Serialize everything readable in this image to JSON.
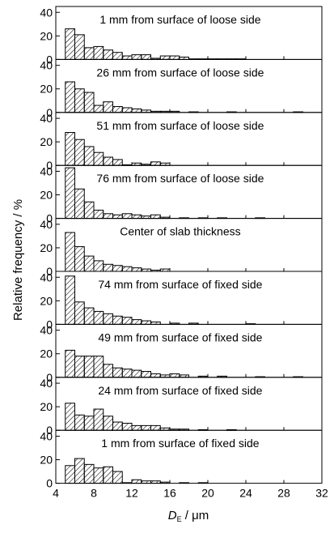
{
  "chart_data": {
    "type": "bar",
    "bin_width": 1,
    "xlim": [
      4,
      32
    ],
    "ylim": [
      0,
      45
    ],
    "x_ticks": [
      4,
      8,
      12,
      16,
      20,
      24,
      28,
      32
    ],
    "y_ticks": [
      0,
      20,
      40
    ],
    "xlabel_main": "D",
    "xlabel_sub": "E",
    "xlabel_unit": " / μm",
    "ylabel": "Relative frequency / %",
    "panels": [
      {
        "title": "1 mm from surface of loose side",
        "bins": [
          5.5,
          6.5,
          7.5,
          8.5,
          9.5,
          10.5,
          11.5,
          12.5,
          13.5,
          14.5,
          15.5,
          16.5,
          17.5,
          18.5,
          19.5,
          20.5,
          21.5,
          22.5,
          23.5
        ],
        "values": [
          26,
          21,
          10,
          11,
          8,
          6,
          3,
          4,
          4,
          1,
          3,
          3,
          2,
          0.5,
          0.5,
          0.5,
          0.5,
          0.5,
          0.5
        ]
      },
      {
        "title": "26 mm from surface of loose side",
        "bins": [
          5.5,
          6.5,
          7.5,
          8.5,
          9.5,
          10.5,
          11.5,
          12.5,
          13.5,
          14.5,
          15.5,
          16.5,
          18.5,
          22.5,
          29.5
        ],
        "values": [
          26,
          20,
          17,
          6,
          9,
          5,
          4,
          3,
          2,
          1,
          1,
          1,
          0.5,
          0.5,
          0.5
        ]
      },
      {
        "title": "51 mm from surface of loose side",
        "bins": [
          5.5,
          6.5,
          7.5,
          8.5,
          9.5,
          10.5,
          11.5,
          12.5,
          13.5,
          14.5,
          15.5
        ],
        "values": [
          28,
          22,
          16,
          11,
          7,
          5,
          0.5,
          2,
          1,
          3,
          2
        ]
      },
      {
        "title": "76 mm from surface of loose side",
        "bins": [
          5.5,
          6.5,
          7.5,
          8.5,
          9.5,
          10.5,
          11.5,
          12.5,
          13.5,
          14.5,
          15.5,
          17.5,
          19.5,
          21.5,
          25.5
        ],
        "values": [
          43,
          25,
          14,
          7,
          4,
          3,
          4,
          3,
          2,
          3,
          1,
          0.5,
          0.5,
          0.5,
          0.5
        ]
      },
      {
        "title": "Center of slab thickness",
        "bins": [
          5.5,
          6.5,
          7.5,
          8.5,
          9.5,
          10.5,
          11.5,
          12.5,
          13.5,
          14.5,
          15.5
        ],
        "values": [
          33,
          21,
          13,
          9,
          6,
          5,
          4,
          3,
          2,
          1,
          2
        ]
      },
      {
        "title": "74 mm from surface of fixed side",
        "bins": [
          5.5,
          6.5,
          7.5,
          8.5,
          9.5,
          10.5,
          11.5,
          12.5,
          13.5,
          14.5,
          16.5,
          18.5,
          24.5
        ],
        "values": [
          41,
          19,
          14,
          11,
          9,
          7,
          6,
          4,
          3,
          2,
          1,
          1,
          0.5
        ]
      },
      {
        "title": "49 mm from surface of fixed side",
        "bins": [
          5.5,
          6.5,
          7.5,
          8.5,
          9.5,
          10.5,
          11.5,
          12.5,
          13.5,
          14.5,
          15.5,
          16.5,
          17.5,
          19.5,
          21.5,
          25.5,
          29.5
        ],
        "values": [
          23,
          18,
          18,
          18,
          11,
          8,
          7,
          6,
          5,
          3,
          2,
          3,
          2,
          1,
          1,
          0.5,
          0.5
        ]
      },
      {
        "title": "24 mm from surface of fixed side",
        "bins": [
          5.5,
          6.5,
          7.5,
          8.5,
          9.5,
          10.5,
          11.5,
          12.5,
          13.5,
          14.5,
          15.5,
          16.5,
          17.5,
          19.5,
          22.5
        ],
        "values": [
          23,
          13,
          12,
          18,
          12,
          7,
          6,
          4,
          4,
          4,
          2,
          1,
          1,
          0.5,
          0.5
        ]
      },
      {
        "title": "1 mm from surface of fixed side",
        "bins": [
          5.5,
          6.5,
          7.5,
          8.5,
          9.5,
          10.5,
          11.5,
          12.5,
          13.5,
          14.5,
          15.5,
          17.5,
          19.5
        ],
        "values": [
          15,
          21,
          16,
          13,
          14,
          10,
          0.5,
          3,
          2,
          2,
          1,
          0.5,
          0.5
        ]
      }
    ]
  }
}
